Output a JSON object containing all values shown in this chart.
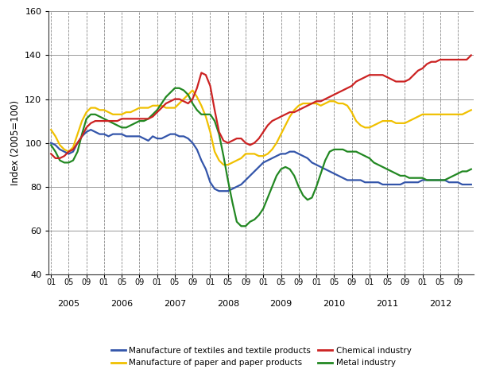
{
  "ylabel": "Index (2005=100)",
  "ylim": [
    40,
    160
  ],
  "yticks": [
    40,
    60,
    80,
    100,
    120,
    140,
    160
  ],
  "bg_color": "#ffffff",
  "years": [
    2005,
    2006,
    2007,
    2008,
    2009,
    2010,
    2011,
    2012
  ],
  "series": {
    "textiles": {
      "label": "Manufacture of textiles and textile products",
      "color": "#3355aa",
      "values": [
        100,
        99,
        97,
        96,
        95,
        96,
        100,
        103,
        105,
        106,
        105,
        104,
        104,
        103,
        104,
        104,
        104,
        103,
        103,
        103,
        103,
        102,
        101,
        103,
        102,
        102,
        103,
        104,
        104,
        103,
        103,
        102,
        100,
        97,
        92,
        88,
        82,
        79,
        78,
        78,
        78,
        79,
        80,
        81,
        83,
        85,
        87,
        89,
        91,
        92,
        93,
        94,
        95,
        95,
        96,
        96,
        95,
        94,
        93,
        91,
        90,
        89,
        88,
        87,
        86,
        85,
        84,
        83,
        83,
        83,
        83,
        82,
        82,
        82,
        82,
        81,
        81,
        81,
        81,
        81,
        82,
        82,
        82,
        82,
        83,
        83,
        83,
        83,
        83,
        83,
        82,
        82,
        82,
        81,
        81,
        81
      ]
    },
    "paper": {
      "label": "Manufacture of paper and paper products",
      "color": "#f0c000",
      "values": [
        106,
        103,
        99,
        97,
        96,
        98,
        104,
        110,
        114,
        116,
        116,
        115,
        115,
        114,
        113,
        113,
        113,
        114,
        114,
        115,
        116,
        116,
        116,
        117,
        117,
        117,
        116,
        116,
        116,
        118,
        120,
        122,
        124,
        121,
        117,
        112,
        105,
        96,
        92,
        90,
        90,
        91,
        92,
        93,
        95,
        95,
        95,
        94,
        94,
        95,
        97,
        100,
        104,
        108,
        112,
        115,
        117,
        118,
        118,
        118,
        118,
        117,
        118,
        119,
        119,
        118,
        118,
        117,
        114,
        110,
        108,
        107,
        107,
        108,
        109,
        110,
        110,
        110,
        109,
        109,
        109,
        110,
        111,
        112,
        113,
        113,
        113,
        113,
        113,
        113,
        113,
        113,
        113,
        113,
        114,
        115
      ]
    },
    "chemical": {
      "label": "Chemical industry",
      "color": "#cc2222",
      "values": [
        95,
        93,
        93,
        94,
        96,
        97,
        100,
        103,
        107,
        109,
        110,
        110,
        110,
        110,
        110,
        110,
        111,
        111,
        111,
        111,
        111,
        111,
        111,
        112,
        114,
        116,
        118,
        119,
        120,
        120,
        119,
        118,
        120,
        125,
        132,
        131,
        126,
        115,
        105,
        101,
        100,
        101,
        102,
        102,
        100,
        99,
        100,
        102,
        105,
        108,
        110,
        111,
        112,
        113,
        114,
        114,
        115,
        116,
        117,
        118,
        119,
        119,
        120,
        121,
        122,
        123,
        124,
        125,
        126,
        128,
        129,
        130,
        131,
        131,
        131,
        131,
        130,
        129,
        128,
        128,
        128,
        129,
        131,
        133,
        134,
        136,
        137,
        137,
        138,
        138,
        138,
        138,
        138,
        138,
        138,
        140
      ]
    },
    "metal": {
      "label": "Metal industry",
      "color": "#228822",
      "values": [
        99,
        96,
        92,
        91,
        91,
        92,
        96,
        104,
        111,
        113,
        113,
        112,
        111,
        110,
        109,
        108,
        107,
        107,
        108,
        109,
        110,
        110,
        111,
        113,
        115,
        118,
        121,
        123,
        125,
        125,
        124,
        122,
        118,
        115,
        113,
        113,
        113,
        110,
        104,
        94,
        83,
        73,
        64,
        62,
        62,
        64,
        65,
        67,
        70,
        75,
        80,
        85,
        88,
        89,
        88,
        85,
        80,
        76,
        74,
        75,
        80,
        86,
        92,
        96,
        97,
        97,
        97,
        96,
        96,
        96,
        95,
        94,
        93,
        91,
        90,
        89,
        88,
        87,
        86,
        85,
        85,
        84,
        84,
        84,
        84,
        83,
        83,
        83,
        83,
        83,
        84,
        85,
        86,
        87,
        87,
        88
      ]
    }
  }
}
